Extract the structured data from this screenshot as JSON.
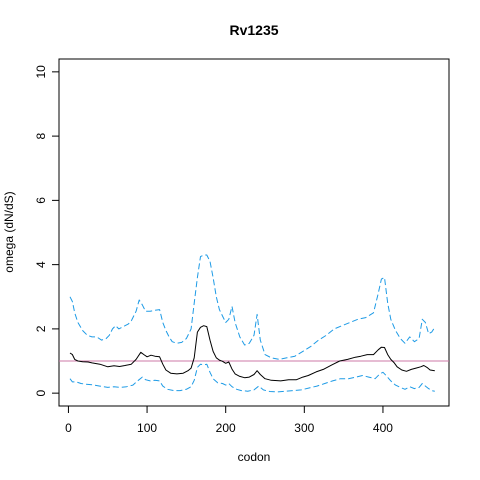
{
  "chart_data": {
    "type": "line",
    "title": "Rv1235",
    "xlabel": "codon",
    "ylabel": "omega (dN/dS)",
    "xlim": [
      -12,
      484
    ],
    "ylim": [
      -0.4,
      10.4
    ],
    "xticks": [
      0,
      100,
      200,
      300,
      400
    ],
    "yticks": [
      0,
      2,
      4,
      6,
      8,
      10
    ],
    "reference_line": {
      "y": 1.0,
      "color": "#cc79a7"
    },
    "series": [
      {
        "color": "#000000",
        "dash": "solid",
        "points": [
          [
            2,
            1.25
          ],
          [
            5,
            1.2
          ],
          [
            8,
            1.05
          ],
          [
            12,
            1.0
          ],
          [
            18,
            0.98
          ],
          [
            25,
            0.97
          ],
          [
            30,
            0.94
          ],
          [
            40,
            0.9
          ],
          [
            50,
            0.82
          ],
          [
            58,
            0.85
          ],
          [
            65,
            0.83
          ],
          [
            72,
            0.86
          ],
          [
            80,
            0.9
          ],
          [
            86,
            1.05
          ],
          [
            92,
            1.27
          ],
          [
            96,
            1.2
          ],
          [
            100,
            1.13
          ],
          [
            105,
            1.18
          ],
          [
            110,
            1.15
          ],
          [
            116,
            1.13
          ],
          [
            120,
            0.9
          ],
          [
            124,
            0.72
          ],
          [
            130,
            0.62
          ],
          [
            138,
            0.6
          ],
          [
            146,
            0.62
          ],
          [
            152,
            0.7
          ],
          [
            156,
            0.78
          ],
          [
            160,
            1.1
          ],
          [
            164,
            1.9
          ],
          [
            168,
            2.05
          ],
          [
            172,
            2.1
          ],
          [
            176,
            2.07
          ],
          [
            180,
            1.65
          ],
          [
            184,
            1.3
          ],
          [
            188,
            1.1
          ],
          [
            192,
            1.03
          ],
          [
            196,
            0.99
          ],
          [
            200,
            0.93
          ],
          [
            204,
            0.97
          ],
          [
            208,
            0.75
          ],
          [
            212,
            0.6
          ],
          [
            218,
            0.52
          ],
          [
            224,
            0.48
          ],
          [
            230,
            0.5
          ],
          [
            236,
            0.58
          ],
          [
            240,
            0.7
          ],
          [
            244,
            0.58
          ],
          [
            250,
            0.45
          ],
          [
            258,
            0.4
          ],
          [
            270,
            0.38
          ],
          [
            280,
            0.42
          ],
          [
            290,
            0.42
          ],
          [
            298,
            0.5
          ],
          [
            305,
            0.55
          ],
          [
            315,
            0.66
          ],
          [
            325,
            0.75
          ],
          [
            335,
            0.88
          ],
          [
            345,
            1.0
          ],
          [
            355,
            1.05
          ],
          [
            365,
            1.12
          ],
          [
            372,
            1.15
          ],
          [
            380,
            1.2
          ],
          [
            388,
            1.2
          ],
          [
            394,
            1.35
          ],
          [
            398,
            1.43
          ],
          [
            402,
            1.42
          ],
          [
            406,
            1.2
          ],
          [
            410,
            1.05
          ],
          [
            414,
            0.95
          ],
          [
            418,
            0.82
          ],
          [
            424,
            0.72
          ],
          [
            430,
            0.68
          ],
          [
            436,
            0.74
          ],
          [
            442,
            0.78
          ],
          [
            448,
            0.82
          ],
          [
            452,
            0.86
          ],
          [
            456,
            0.8
          ],
          [
            460,
            0.72
          ],
          [
            466,
            0.7
          ]
        ]
      },
      {
        "color": "#1e9be6",
        "dash": "dashed",
        "points": [
          [
            2,
            3.0
          ],
          [
            5,
            2.85
          ],
          [
            8,
            2.5
          ],
          [
            12,
            2.2
          ],
          [
            18,
            1.95
          ],
          [
            24,
            1.8
          ],
          [
            30,
            1.75
          ],
          [
            36,
            1.75
          ],
          [
            42,
            1.65
          ],
          [
            48,
            1.7
          ],
          [
            52,
            1.8
          ],
          [
            56,
            2.0
          ],
          [
            60,
            2.1
          ],
          [
            64,
            2.0
          ],
          [
            68,
            2.05
          ],
          [
            72,
            2.1
          ],
          [
            76,
            2.15
          ],
          [
            80,
            2.25
          ],
          [
            86,
            2.55
          ],
          [
            90,
            2.9
          ],
          [
            94,
            2.75
          ],
          [
            98,
            2.55
          ],
          [
            104,
            2.55
          ],
          [
            110,
            2.58
          ],
          [
            116,
            2.6
          ],
          [
            120,
            2.2
          ],
          [
            124,
            1.95
          ],
          [
            128,
            1.75
          ],
          [
            132,
            1.6
          ],
          [
            138,
            1.55
          ],
          [
            144,
            1.58
          ],
          [
            150,
            1.7
          ],
          [
            156,
            2.0
          ],
          [
            160,
            2.8
          ],
          [
            164,
            3.6
          ],
          [
            168,
            4.25
          ],
          [
            172,
            4.3
          ],
          [
            176,
            4.3
          ],
          [
            180,
            4.1
          ],
          [
            184,
            3.6
          ],
          [
            188,
            3.0
          ],
          [
            192,
            2.6
          ],
          [
            196,
            2.4
          ],
          [
            200,
            2.2
          ],
          [
            204,
            2.3
          ],
          [
            208,
            2.7
          ],
          [
            212,
            2.2
          ],
          [
            218,
            1.75
          ],
          [
            224,
            1.5
          ],
          [
            230,
            1.55
          ],
          [
            236,
            1.8
          ],
          [
            240,
            2.45
          ],
          [
            244,
            1.65
          ],
          [
            250,
            1.2
          ],
          [
            258,
            1.1
          ],
          [
            268,
            1.05
          ],
          [
            278,
            1.1
          ],
          [
            288,
            1.15
          ],
          [
            298,
            1.3
          ],
          [
            308,
            1.45
          ],
          [
            318,
            1.65
          ],
          [
            328,
            1.8
          ],
          [
            338,
            2.0
          ],
          [
            348,
            2.1
          ],
          [
            358,
            2.2
          ],
          [
            368,
            2.3
          ],
          [
            378,
            2.35
          ],
          [
            388,
            2.5
          ],
          [
            394,
            3.1
          ],
          [
            398,
            3.55
          ],
          [
            402,
            3.6
          ],
          [
            406,
            2.8
          ],
          [
            410,
            2.3
          ],
          [
            416,
            1.95
          ],
          [
            422,
            1.7
          ],
          [
            428,
            1.55
          ],
          [
            434,
            1.75
          ],
          [
            440,
            1.6
          ],
          [
            446,
            1.7
          ],
          [
            450,
            2.3
          ],
          [
            454,
            2.2
          ],
          [
            458,
            1.85
          ],
          [
            462,
            1.9
          ],
          [
            466,
            2.05
          ]
        ]
      },
      {
        "color": "#1e9be6",
        "dash": "dashed",
        "points": [
          [
            2,
            0.45
          ],
          [
            5,
            0.35
          ],
          [
            10,
            0.35
          ],
          [
            16,
            0.3
          ],
          [
            22,
            0.28
          ],
          [
            30,
            0.26
          ],
          [
            40,
            0.22
          ],
          [
            50,
            0.18
          ],
          [
            58,
            0.2
          ],
          [
            66,
            0.18
          ],
          [
            74,
            0.2
          ],
          [
            82,
            0.25
          ],
          [
            88,
            0.38
          ],
          [
            94,
            0.5
          ],
          [
            98,
            0.42
          ],
          [
            104,
            0.38
          ],
          [
            110,
            0.4
          ],
          [
            116,
            0.38
          ],
          [
            120,
            0.22
          ],
          [
            126,
            0.12
          ],
          [
            134,
            0.08
          ],
          [
            142,
            0.08
          ],
          [
            150,
            0.12
          ],
          [
            156,
            0.2
          ],
          [
            160,
            0.4
          ],
          [
            164,
            0.8
          ],
          [
            168,
            0.9
          ],
          [
            172,
            0.88
          ],
          [
            176,
            0.9
          ],
          [
            180,
            0.65
          ],
          [
            184,
            0.45
          ],
          [
            190,
            0.32
          ],
          [
            196,
            0.3
          ],
          [
            200,
            0.25
          ],
          [
            204,
            0.3
          ],
          [
            208,
            0.2
          ],
          [
            214,
            0.12
          ],
          [
            220,
            0.08
          ],
          [
            228,
            0.06
          ],
          [
            236,
            0.1
          ],
          [
            242,
            0.22
          ],
          [
            248,
            0.1
          ],
          [
            256,
            0.05
          ],
          [
            266,
            0.04
          ],
          [
            276,
            0.06
          ],
          [
            286,
            0.08
          ],
          [
            296,
            0.1
          ],
          [
            306,
            0.16
          ],
          [
            316,
            0.22
          ],
          [
            326,
            0.3
          ],
          [
            336,
            0.38
          ],
          [
            346,
            0.45
          ],
          [
            356,
            0.45
          ],
          [
            366,
            0.5
          ],
          [
            374,
            0.55
          ],
          [
            382,
            0.5
          ],
          [
            390,
            0.45
          ],
          [
            396,
            0.6
          ],
          [
            400,
            0.65
          ],
          [
            404,
            0.55
          ],
          [
            410,
            0.38
          ],
          [
            416,
            0.25
          ],
          [
            422,
            0.18
          ],
          [
            428,
            0.12
          ],
          [
            434,
            0.2
          ],
          [
            440,
            0.14
          ],
          [
            446,
            0.18
          ],
          [
            450,
            0.3
          ],
          [
            454,
            0.22
          ],
          [
            458,
            0.14
          ],
          [
            462,
            0.08
          ],
          [
            466,
            0.06
          ]
        ]
      }
    ]
  }
}
